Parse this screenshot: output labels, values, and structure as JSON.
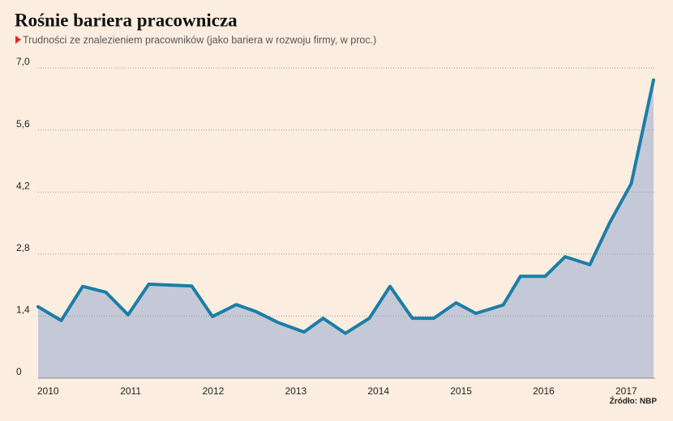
{
  "chart_data": {
    "type": "area",
    "title": "Rośnie bariera pracownicza",
    "subtitle": "Trudności ze znalezieniem pracowników (jako bariera w rozwoju firmy, w proc.)",
    "source": "Źródło: NBP",
    "x": [
      2009.88,
      2010.16,
      2010.42,
      2010.7,
      2010.97,
      2011.22,
      2011.48,
      2011.74,
      2011.99,
      2012.28,
      2012.52,
      2012.78,
      2013.1,
      2013.33,
      2013.6,
      2013.89,
      2014.14,
      2014.41,
      2014.67,
      2014.94,
      2015.18,
      2015.51,
      2015.72,
      2016.02,
      2016.26,
      2016.56,
      2016.8,
      2017.06,
      2017.33
    ],
    "values": [
      1.61,
      1.3,
      2.07,
      1.94,
      1.43,
      2.12,
      2.1,
      2.08,
      1.39,
      1.66,
      1.5,
      1.26,
      1.04,
      1.35,
      1.01,
      1.35,
      2.07,
      1.35,
      1.35,
      1.7,
      1.46,
      1.65,
      2.3,
      2.3,
      2.74,
      2.56,
      3.51,
      4.39,
      6.73
    ],
    "color": "#1b7ea6",
    "fill_color": "#c5c9d7",
    "xlim": [
      2009.88,
      2017.35
    ],
    "xticks": [
      2010,
      2011,
      2012,
      2013,
      2014,
      2015,
      2016,
      2017
    ],
    "ylim": [
      0,
      7
    ],
    "yticks": [
      0,
      {
        "value": 1.4,
        "label": "1,4"
      },
      {
        "value": 2.8,
        "label": "2,8"
      },
      {
        "value": 4.2,
        "label": "4,2"
      },
      {
        "value": 5.6,
        "label": "5,6"
      },
      {
        "value": 7,
        "label": "7,0"
      }
    ],
    "grid": true
  }
}
